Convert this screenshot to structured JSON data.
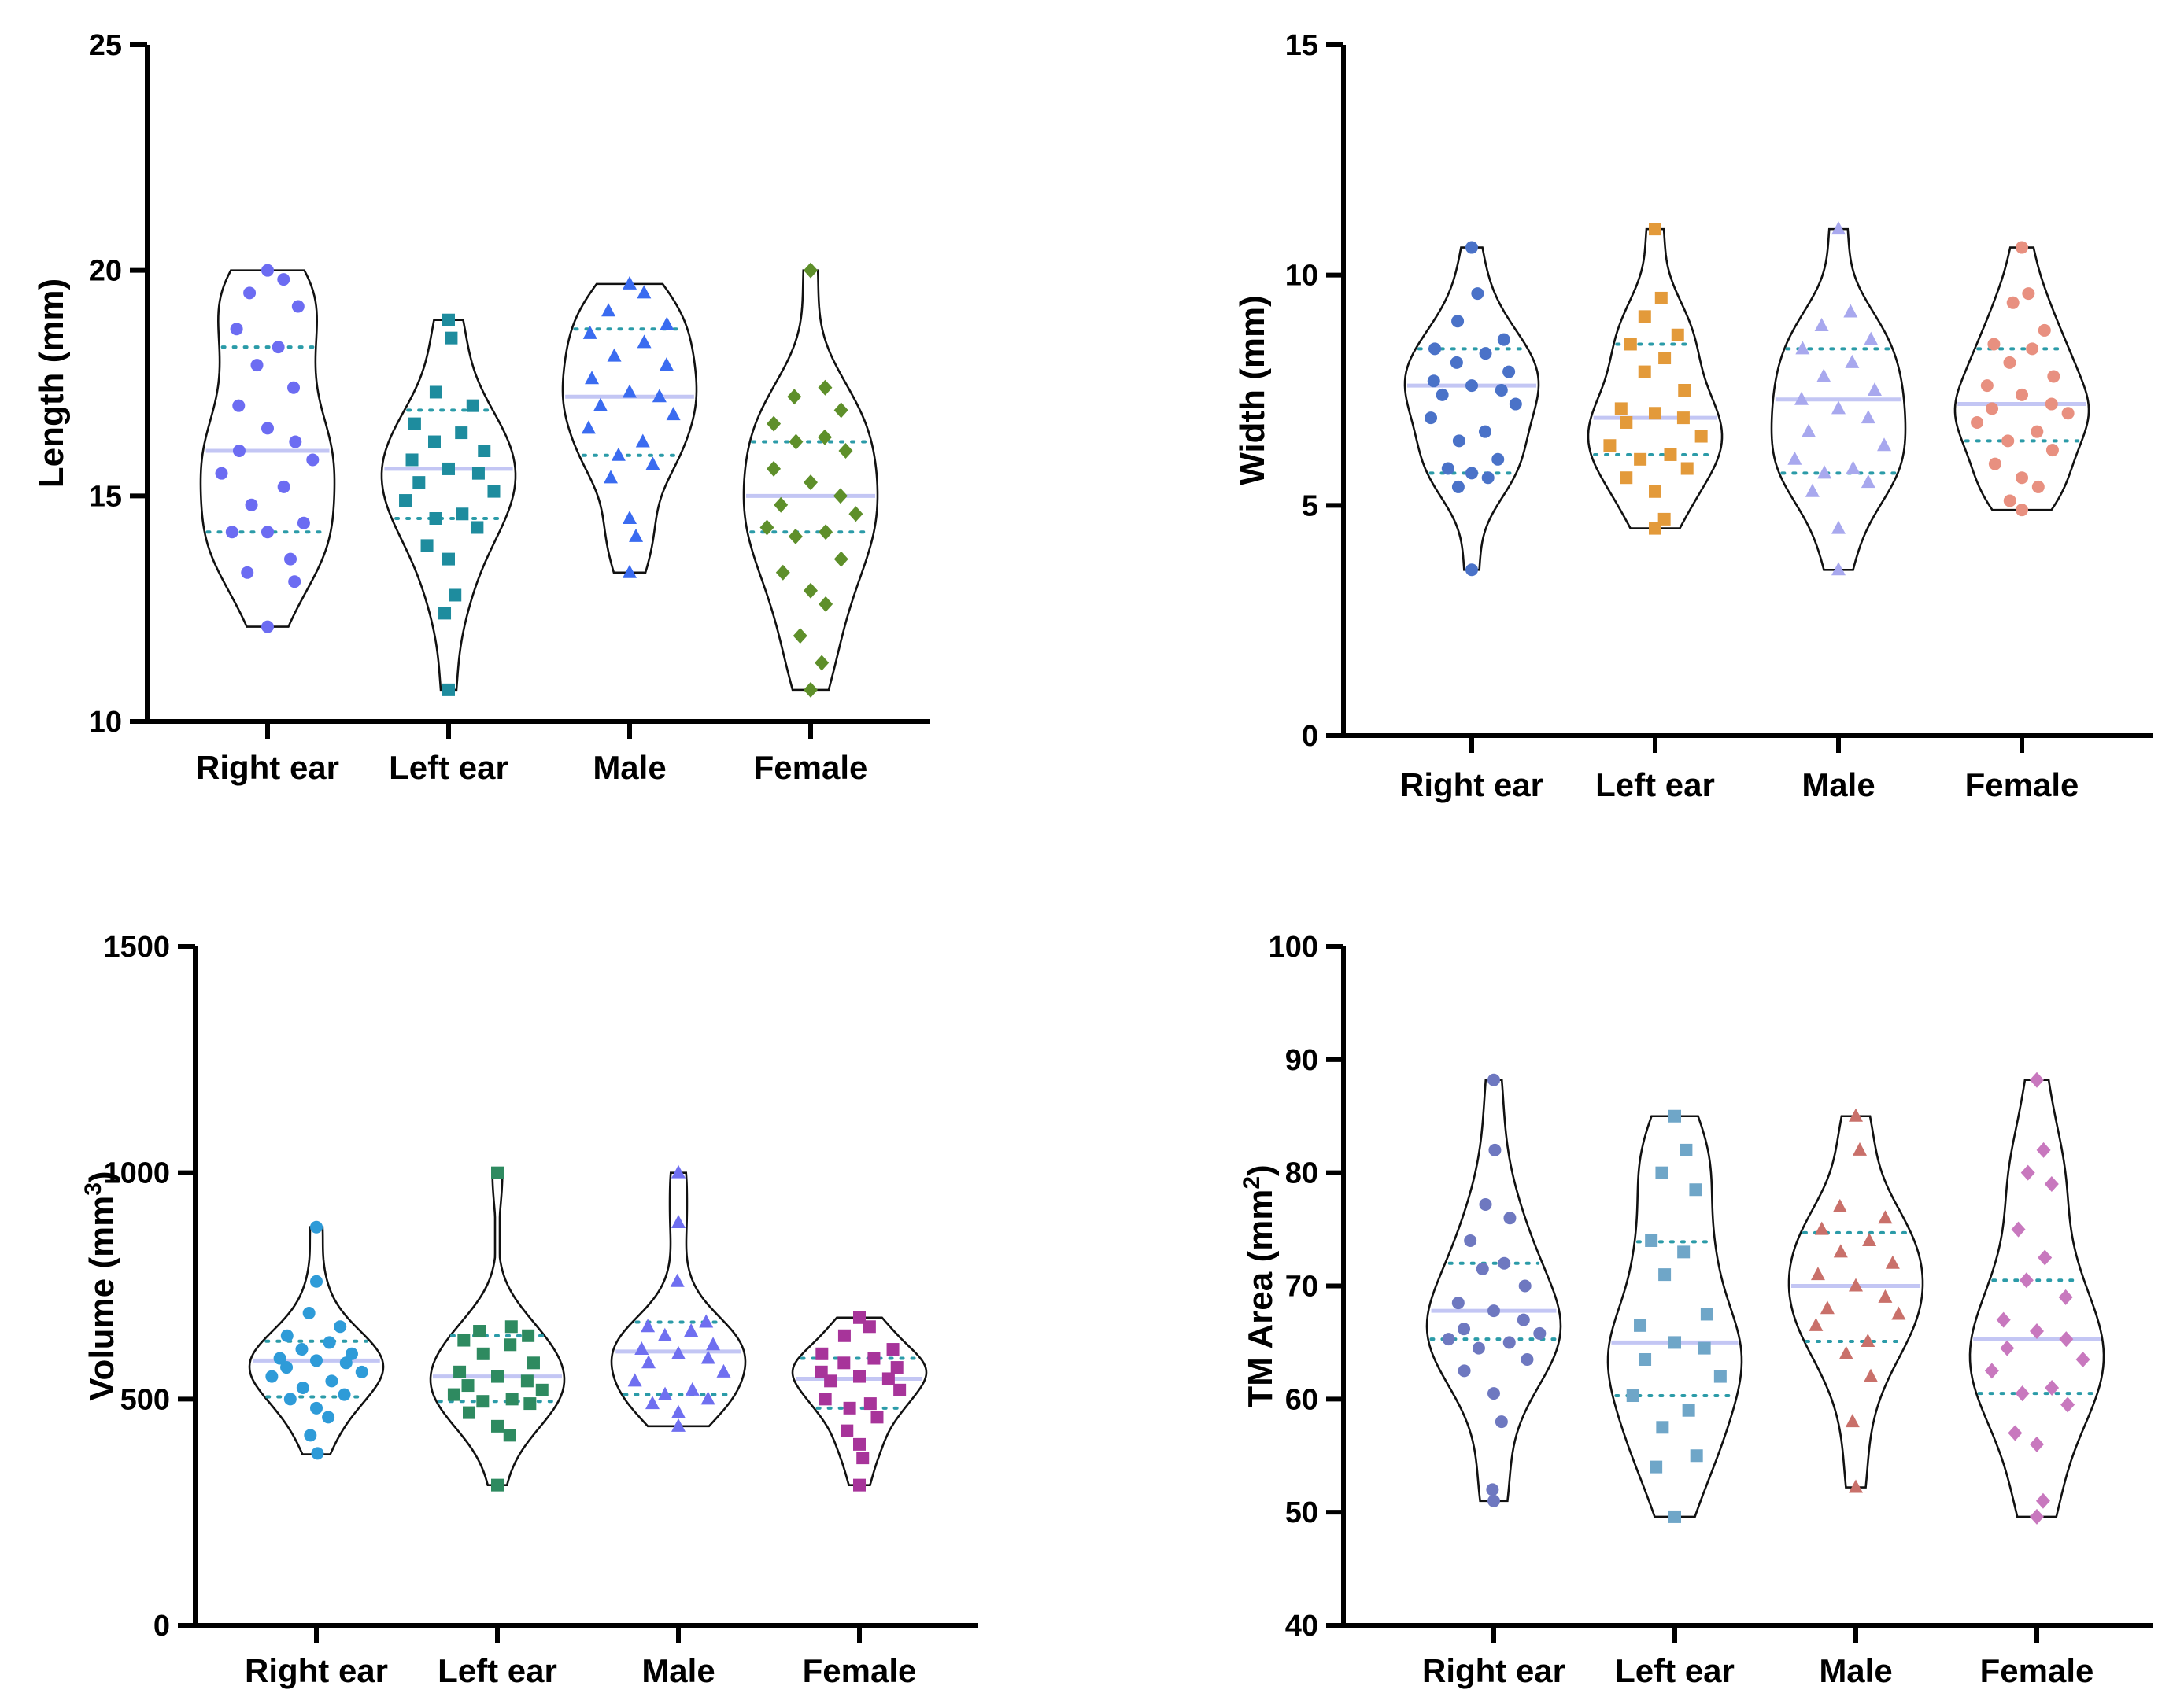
{
  "chart_data": [
    {
      "type": "violin",
      "panel": "top-left",
      "ylabel": "Length (mm)",
      "ylim": [
        10,
        25
      ],
      "yticks": [
        "10",
        "15",
        "20",
        "25"
      ],
      "categories": [
        "Right ear",
        "Left ear",
        "Male",
        "Female"
      ],
      "series": [
        {
          "name": "Right ear",
          "color": "#6C6CF2",
          "marker": "circle",
          "median": 16.0,
          "q1": 14.2,
          "q3": 18.3,
          "min": 12.1,
          "max": 20.0,
          "values": [
            20.0,
            19.8,
            19.5,
            19.2,
            18.7,
            18.3,
            17.9,
            17.4,
            17.0,
            16.5,
            16.2,
            16.0,
            15.8,
            15.5,
            15.2,
            14.8,
            14.4,
            14.2,
            14.2,
            13.6,
            13.3,
            13.1,
            12.1
          ]
        },
        {
          "name": "Left ear",
          "color": "#1E8C9E",
          "marker": "square",
          "median": 15.6,
          "q1": 14.5,
          "q3": 16.9,
          "min": 10.7,
          "max": 18.9,
          "values": [
            18.9,
            18.5,
            17.3,
            17.0,
            16.6,
            16.4,
            16.2,
            16.0,
            15.8,
            15.6,
            15.5,
            15.3,
            15.1,
            14.9,
            14.6,
            14.5,
            14.3,
            13.9,
            13.6,
            12.8,
            12.4,
            10.7
          ]
        },
        {
          "name": "Male",
          "color": "#3A6BF0",
          "marker": "triangle",
          "median": 17.2,
          "q1": 15.9,
          "q3": 18.7,
          "min": 13.3,
          "max": 19.7,
          "values": [
            19.7,
            19.5,
            19.1,
            18.8,
            18.6,
            18.4,
            18.1,
            17.9,
            17.6,
            17.3,
            17.2,
            17.0,
            16.8,
            16.5,
            16.2,
            15.9,
            15.7,
            15.4,
            14.5,
            14.1,
            13.3
          ]
        },
        {
          "name": "Female",
          "color": "#5E8F2A",
          "marker": "diamond",
          "median": 15.0,
          "q1": 14.2,
          "q3": 16.2,
          "min": 10.7,
          "max": 20.0,
          "values": [
            20.0,
            17.4,
            17.2,
            16.9,
            16.6,
            16.3,
            16.2,
            16.0,
            15.6,
            15.3,
            15.0,
            14.8,
            14.6,
            14.3,
            14.2,
            14.1,
            13.6,
            13.3,
            12.9,
            12.6,
            11.9,
            11.3,
            10.7
          ]
        }
      ]
    },
    {
      "type": "violin",
      "panel": "top-right",
      "ylabel": "Width (mm)",
      "ylim": [
        0,
        15
      ],
      "yticks": [
        "0",
        "5",
        "10",
        "15"
      ],
      "categories": [
        "Right ear",
        "Left ear",
        "Male",
        "Female"
      ],
      "series": [
        {
          "name": "Right ear",
          "color": "#4A72C8",
          "marker": "circle",
          "median": 7.6,
          "q1": 5.7,
          "q3": 8.4,
          "min": 3.6,
          "max": 10.6,
          "values": [
            10.6,
            9.6,
            9.0,
            8.6,
            8.4,
            8.3,
            8.1,
            7.9,
            7.7,
            7.6,
            7.5,
            7.4,
            7.2,
            6.9,
            6.6,
            6.4,
            6.0,
            5.8,
            5.7,
            5.6,
            5.4,
            3.6
          ]
        },
        {
          "name": "Left ear",
          "color": "#E39A3A",
          "marker": "square",
          "median": 6.9,
          "q1": 6.1,
          "q3": 8.5,
          "min": 4.5,
          "max": 11.0,
          "values": [
            11.0,
            9.5,
            9.1,
            8.7,
            8.5,
            8.2,
            7.9,
            7.5,
            7.1,
            7.0,
            6.9,
            6.8,
            6.5,
            6.3,
            6.1,
            6.0,
            5.8,
            5.6,
            5.3,
            4.7,
            4.5
          ]
        },
        {
          "name": "Male",
          "color": "#A8A8EE",
          "marker": "triangle",
          "median": 7.3,
          "q1": 5.7,
          "q3": 8.4,
          "min": 3.6,
          "max": 11.0,
          "values": [
            11.0,
            9.2,
            8.9,
            8.6,
            8.4,
            8.1,
            7.8,
            7.5,
            7.3,
            7.1,
            6.9,
            6.6,
            6.3,
            6.0,
            5.8,
            5.7,
            5.5,
            5.3,
            4.5,
            3.6
          ]
        },
        {
          "name": "Female",
          "color": "#E89080",
          "marker": "circle",
          "median": 7.2,
          "q1": 6.4,
          "q3": 8.4,
          "min": 4.9,
          "max": 10.6,
          "values": [
            10.6,
            9.6,
            9.4,
            8.8,
            8.5,
            8.4,
            8.1,
            7.8,
            7.6,
            7.4,
            7.2,
            7.1,
            7.0,
            6.8,
            6.6,
            6.4,
            6.2,
            5.9,
            5.6,
            5.4,
            5.1,
            4.9
          ]
        }
      ]
    },
    {
      "type": "violin",
      "panel": "bottom-left",
      "ylabel": "Volume (mm",
      "ylabel_sup": "3",
      "ylabel_close": ")",
      "ylim": [
        0,
        1500
      ],
      "yticks": [
        "0",
        "500",
        "1000",
        "1500"
      ],
      "categories": [
        "Right ear",
        "Left ear",
        "Male",
        "Female"
      ],
      "series": [
        {
          "name": "Right ear",
          "color": "#2E9BD8",
          "marker": "circle",
          "median": 585,
          "q1": 505,
          "q3": 628,
          "min": 378,
          "max": 880,
          "values": [
            880,
            760,
            690,
            660,
            640,
            625,
            610,
            600,
            590,
            585,
            580,
            570,
            560,
            550,
            540,
            525,
            510,
            500,
            480,
            460,
            420,
            380
          ]
        },
        {
          "name": "Left ear",
          "color": "#2E8A60",
          "marker": "square",
          "median": 550,
          "q1": 495,
          "q3": 640,
          "min": 310,
          "max": 1000,
          "values": [
            1000,
            660,
            650,
            640,
            630,
            620,
            600,
            580,
            560,
            550,
            540,
            530,
            520,
            510,
            500,
            495,
            490,
            470,
            440,
            420,
            310
          ]
        },
        {
          "name": "Male",
          "color": "#6F6FF0",
          "marker": "triangle",
          "median": 605,
          "q1": 510,
          "q3": 670,
          "min": 440,
          "max": 1000,
          "values": [
            1000,
            890,
            760,
            670,
            660,
            650,
            640,
            620,
            610,
            600,
            590,
            580,
            560,
            540,
            520,
            510,
            500,
            490,
            470,
            440
          ]
        },
        {
          "name": "Female",
          "color": "#A7349A",
          "marker": "square",
          "median": 545,
          "q1": 480,
          "q3": 590,
          "min": 310,
          "max": 680,
          "values": [
            680,
            660,
            640,
            610,
            600,
            590,
            580,
            570,
            560,
            550,
            545,
            540,
            520,
            500,
            490,
            480,
            460,
            430,
            400,
            370,
            310
          ]
        }
      ]
    },
    {
      "type": "violin",
      "panel": "bottom-right",
      "ylabel": "TM Area (mm",
      "ylabel_sup": "2",
      "ylabel_close": ")",
      "ylim": [
        40,
        100
      ],
      "yticks": [
        "40",
        "50",
        "60",
        "70",
        "80",
        "90",
        "100"
      ],
      "categories": [
        "Right ear",
        "Left ear",
        "Male",
        "Female"
      ],
      "series": [
        {
          "name": "Right ear",
          "color": "#6E78C0",
          "marker": "circle",
          "median": 67.8,
          "q1": 65.3,
          "q3": 72.0,
          "min": 51.0,
          "max": 88.2,
          "values": [
            88.2,
            82.0,
            77.2,
            76.0,
            74.0,
            72.0,
            71.5,
            70.0,
            68.5,
            67.8,
            67.0,
            66.2,
            65.8,
            65.3,
            65.0,
            64.5,
            63.5,
            62.5,
            60.5,
            58.0,
            52.0,
            51.0
          ]
        },
        {
          "name": "Left ear",
          "color": "#6FA6C8",
          "marker": "square",
          "median": 65.0,
          "q1": 60.3,
          "q3": 73.9,
          "min": 49.6,
          "max": 85.0,
          "values": [
            85.0,
            82.0,
            80.0,
            78.5,
            74.0,
            73.0,
            71.0,
            67.5,
            66.5,
            65.0,
            64.5,
            63.5,
            62.0,
            60.3,
            59.0,
            57.5,
            55.0,
            54.0,
            49.6
          ]
        },
        {
          "name": "Male",
          "color": "#C9706A",
          "marker": "triangle",
          "median": 70.0,
          "q1": 65.1,
          "q3": 74.7,
          "min": 52.2,
          "max": 85.0,
          "values": [
            85.0,
            82.0,
            77.0,
            76.0,
            75.0,
            74.0,
            73.0,
            72.0,
            71.0,
            70.0,
            69.0,
            68.0,
            67.5,
            66.5,
            65.1,
            64.0,
            62.0,
            58.0,
            52.2
          ]
        },
        {
          "name": "Female",
          "color": "#C878BE",
          "marker": "diamond",
          "median": 65.3,
          "q1": 60.5,
          "q3": 70.5,
          "min": 49.6,
          "max": 88.2,
          "values": [
            88.2,
            82.0,
            80.0,
            79.0,
            75.0,
            72.5,
            70.5,
            69.0,
            67.0,
            66.0,
            65.3,
            64.5,
            63.5,
            62.5,
            61.0,
            60.5,
            59.5,
            57.0,
            56.0,
            51.0,
            49.6
          ]
        }
      ]
    }
  ]
}
